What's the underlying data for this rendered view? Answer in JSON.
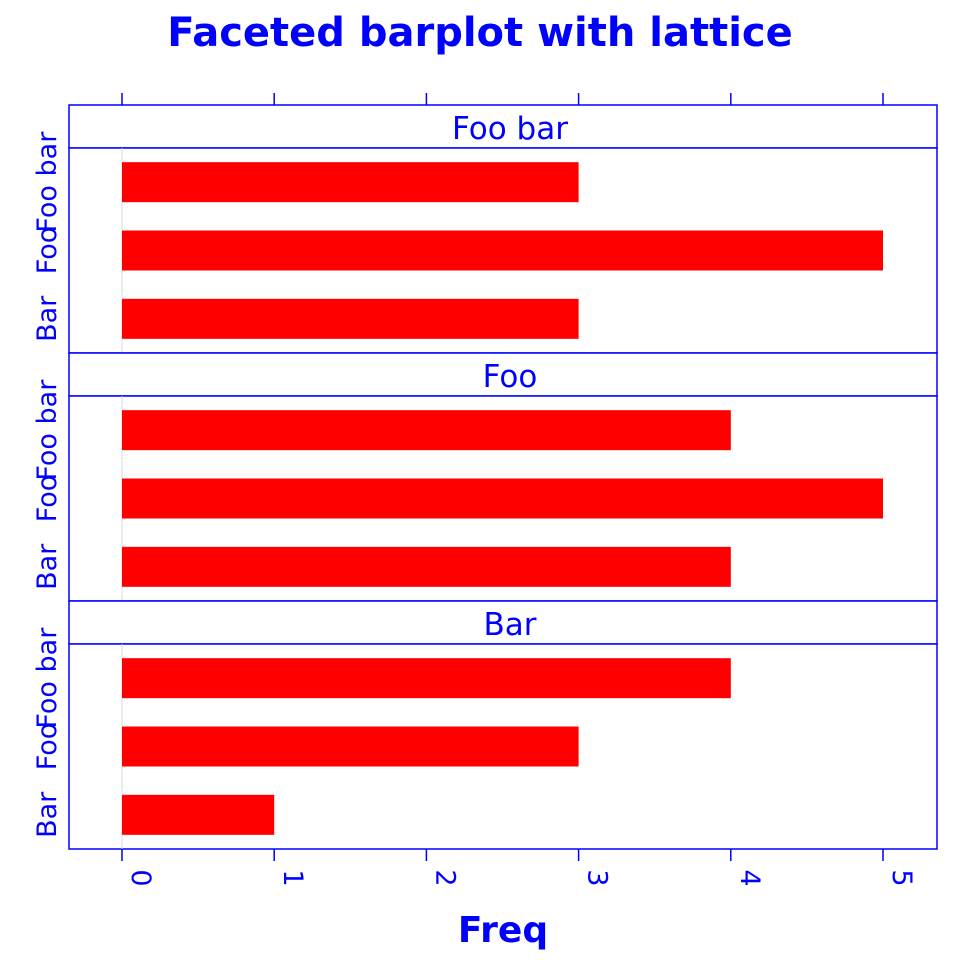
{
  "chart_data": {
    "type": "bar",
    "orientation": "horizontal",
    "title": "Faceted barplot with lattice",
    "xlabel": "Freq",
    "ylabel": "",
    "xlim": [
      0,
      5
    ],
    "x_ticks": [
      0,
      1,
      2,
      3,
      4,
      5
    ],
    "categories": [
      "Bar",
      "Foo",
      "Foo bar"
    ],
    "panels": [
      {
        "strip": "Foo bar",
        "values": [
          3,
          5,
          3
        ]
      },
      {
        "strip": "Foo",
        "values": [
          4,
          5,
          4
        ]
      },
      {
        "strip": "Bar",
        "values": [
          1,
          3,
          4
        ]
      }
    ],
    "grid": false,
    "legend": "none",
    "colors": {
      "bar": "#ff0000",
      "text": "#0000ff",
      "frame": "#0000ff",
      "zero_line": "#d8d8d8"
    }
  }
}
